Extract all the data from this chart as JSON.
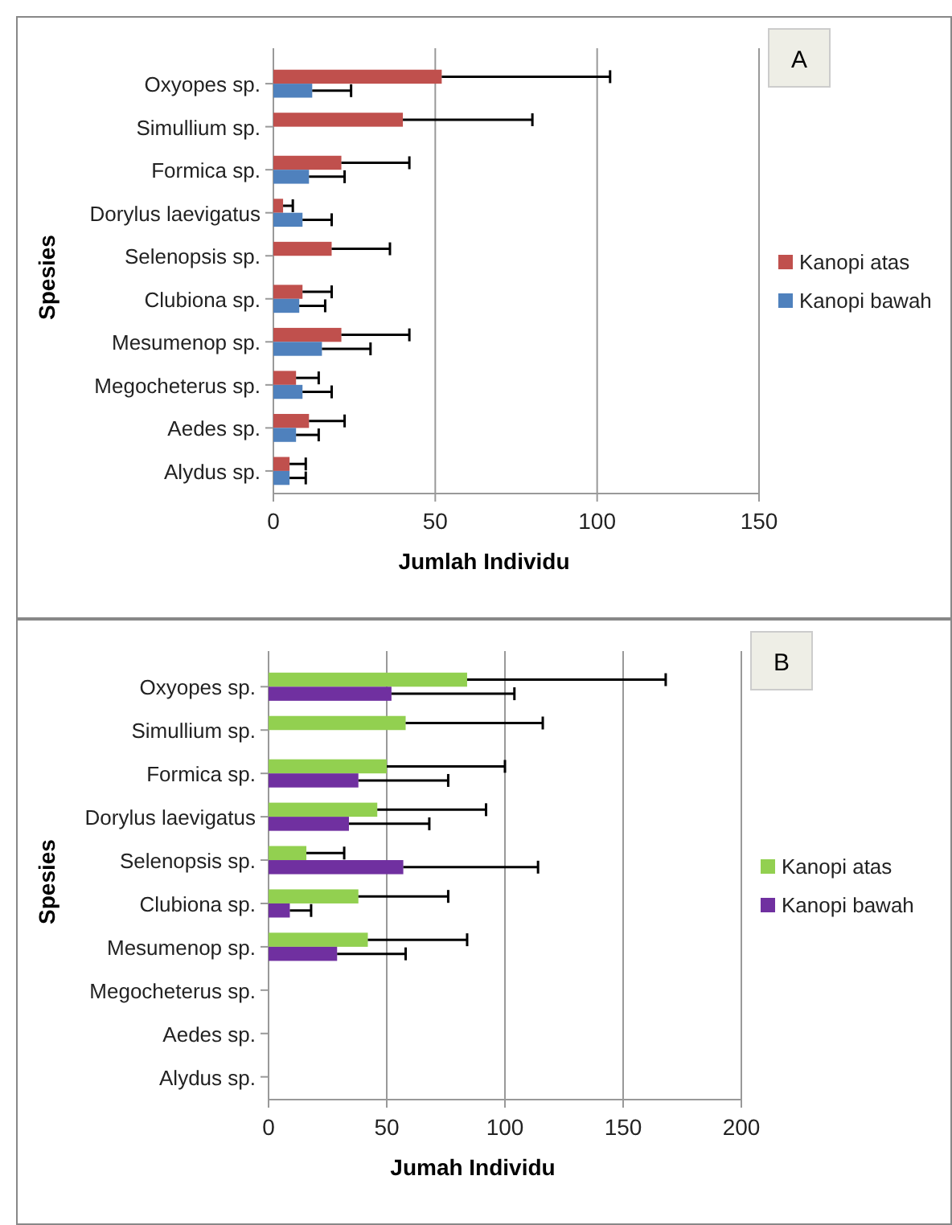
{
  "chart_data": [
    {
      "type": "bar",
      "orientation": "horizontal",
      "categories": [
        "Oxyopes sp.",
        "Simullium sp.",
        "Formica sp.",
        "Dorylus laevigatus",
        "Selenopsis sp.",
        "Clubiona sp.",
        "Mesumenop sp.",
        "Megocheterus sp.",
        "Aedes sp.",
        "Alydus sp."
      ],
      "series": [
        {
          "name": "Kanopi atas",
          "color": "#c0504d",
          "values": [
            52,
            40,
            21,
            3,
            18,
            9,
            21,
            7,
            11,
            5
          ],
          "errors": [
            [
              52,
              104
            ],
            [
              40,
              80
            ],
            [
              21,
              42
            ],
            [
              3,
              6
            ],
            [
              18,
              36
            ],
            [
              9,
              18
            ],
            [
              21,
              42
            ],
            [
              7,
              14
            ],
            [
              11,
              22
            ],
            [
              5,
              10
            ]
          ]
        },
        {
          "name": "Kanopi bawah",
          "color": "#4f81bd",
          "values": [
            12,
            null,
            11,
            9,
            null,
            8,
            15,
            9,
            7,
            5
          ],
          "errors": [
            [
              12,
              24
            ],
            null,
            [
              11,
              22
            ],
            [
              9,
              18
            ],
            null,
            [
              8,
              16
            ],
            [
              15,
              30
            ],
            [
              9,
              18
            ],
            [
              7,
              14
            ],
            [
              5,
              10
            ]
          ]
        }
      ],
      "xlim": [
        0,
        150
      ],
      "xticks": [
        0,
        50,
        100,
        150
      ],
      "grid": "x",
      "legend": "right",
      "xlabel": "Jumlah Individu",
      "ylabel": "Spesies",
      "annotations": [
        "A"
      ]
    },
    {
      "type": "bar",
      "orientation": "horizontal",
      "categories": [
        "Oxyopes sp.",
        "Simullium sp.",
        "Formica sp.",
        "Dorylus laevigatus",
        "Selenopsis sp.",
        "Clubiona sp.",
        "Mesumenop sp.",
        "Megocheterus sp.",
        "Aedes sp.",
        "Alydus sp."
      ],
      "series": [
        {
          "name": "Kanopi atas",
          "color": "#92d050",
          "values": [
            84,
            58,
            50,
            46,
            16,
            38,
            42,
            null,
            null,
            null
          ],
          "errors": [
            [
              84,
              168
            ],
            [
              58,
              116
            ],
            [
              50,
              100
            ],
            [
              46,
              92
            ],
            [
              16,
              32
            ],
            [
              38,
              76
            ],
            [
              42,
              84
            ],
            null,
            null,
            null
          ]
        },
        {
          "name": "Kanopi bawah",
          "color": "#7030a0",
          "values": [
            52,
            null,
            38,
            34,
            57,
            9,
            29,
            null,
            null,
            null
          ],
          "errors": [
            [
              52,
              104
            ],
            null,
            [
              38,
              76
            ],
            [
              34,
              68
            ],
            [
              57,
              114
            ],
            [
              9,
              18
            ],
            [
              29,
              58
            ],
            null,
            null,
            null
          ]
        }
      ],
      "xlim": [
        0,
        200
      ],
      "xticks": [
        0,
        50,
        100,
        150,
        200
      ],
      "grid": "x",
      "legend": "right",
      "xlabel": "Jumah Individu",
      "ylabel": "Spesies",
      "annotations": [
        "B"
      ]
    }
  ]
}
